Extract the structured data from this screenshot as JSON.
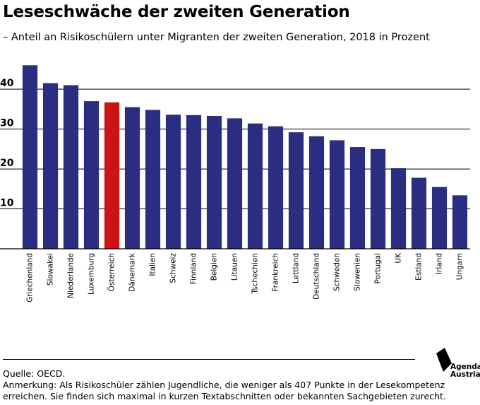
{
  "title": "Leseschwäche der zweiten Generation",
  "subtitle": "– Anteil an Risikoschülern unter Migranten der zweiten Generation, 2018 in Prozent",
  "footer": {
    "source": "Quelle: OECD.",
    "note_line1": "Anmerkung: Als Risikoschüler zählen Jugendliche, die weniger als 407 Punkte in der Lesekompetenz",
    "note_line2": "erreichen. Sie finden sich maximal in kurzen Textabschnitten oder bekannten Sachgebieten zurecht."
  },
  "logo": {
    "line1": "Agenda",
    "line2": "Austria"
  },
  "colors": {
    "bar": "#2b2e80",
    "highlight": "#cc1417",
    "grid": "#000000"
  },
  "chart_data": {
    "type": "bar",
    "categories": [
      "Griechenland",
      "Slowakei",
      "Niederlande",
      "Luxemburg",
      "Österreich",
      "Dänemark",
      "Italien",
      "Schweiz",
      "Finnland",
      "Belgien",
      "Litauen",
      "Tschechien",
      "Frankreich",
      "Lettland",
      "Deutschland",
      "Schweden",
      "Slowenien",
      "Portugal",
      "UK",
      "Estland",
      "Irland",
      "Ungarn"
    ],
    "values": [
      46.0,
      41.5,
      41.0,
      37.0,
      36.7,
      35.5,
      34.8,
      33.6,
      33.5,
      33.3,
      32.7,
      31.4,
      30.7,
      29.2,
      28.2,
      27.2,
      25.5,
      25.0,
      20.2,
      17.8,
      15.5,
      13.4
    ],
    "highlight": "Österreich",
    "yticks": [
      10,
      20,
      30,
      40
    ],
    "ylim": [
      0,
      48
    ],
    "grid": true,
    "title": "Leseschwäche der zweiten Generation",
    "xlabel": "",
    "ylabel": ""
  }
}
